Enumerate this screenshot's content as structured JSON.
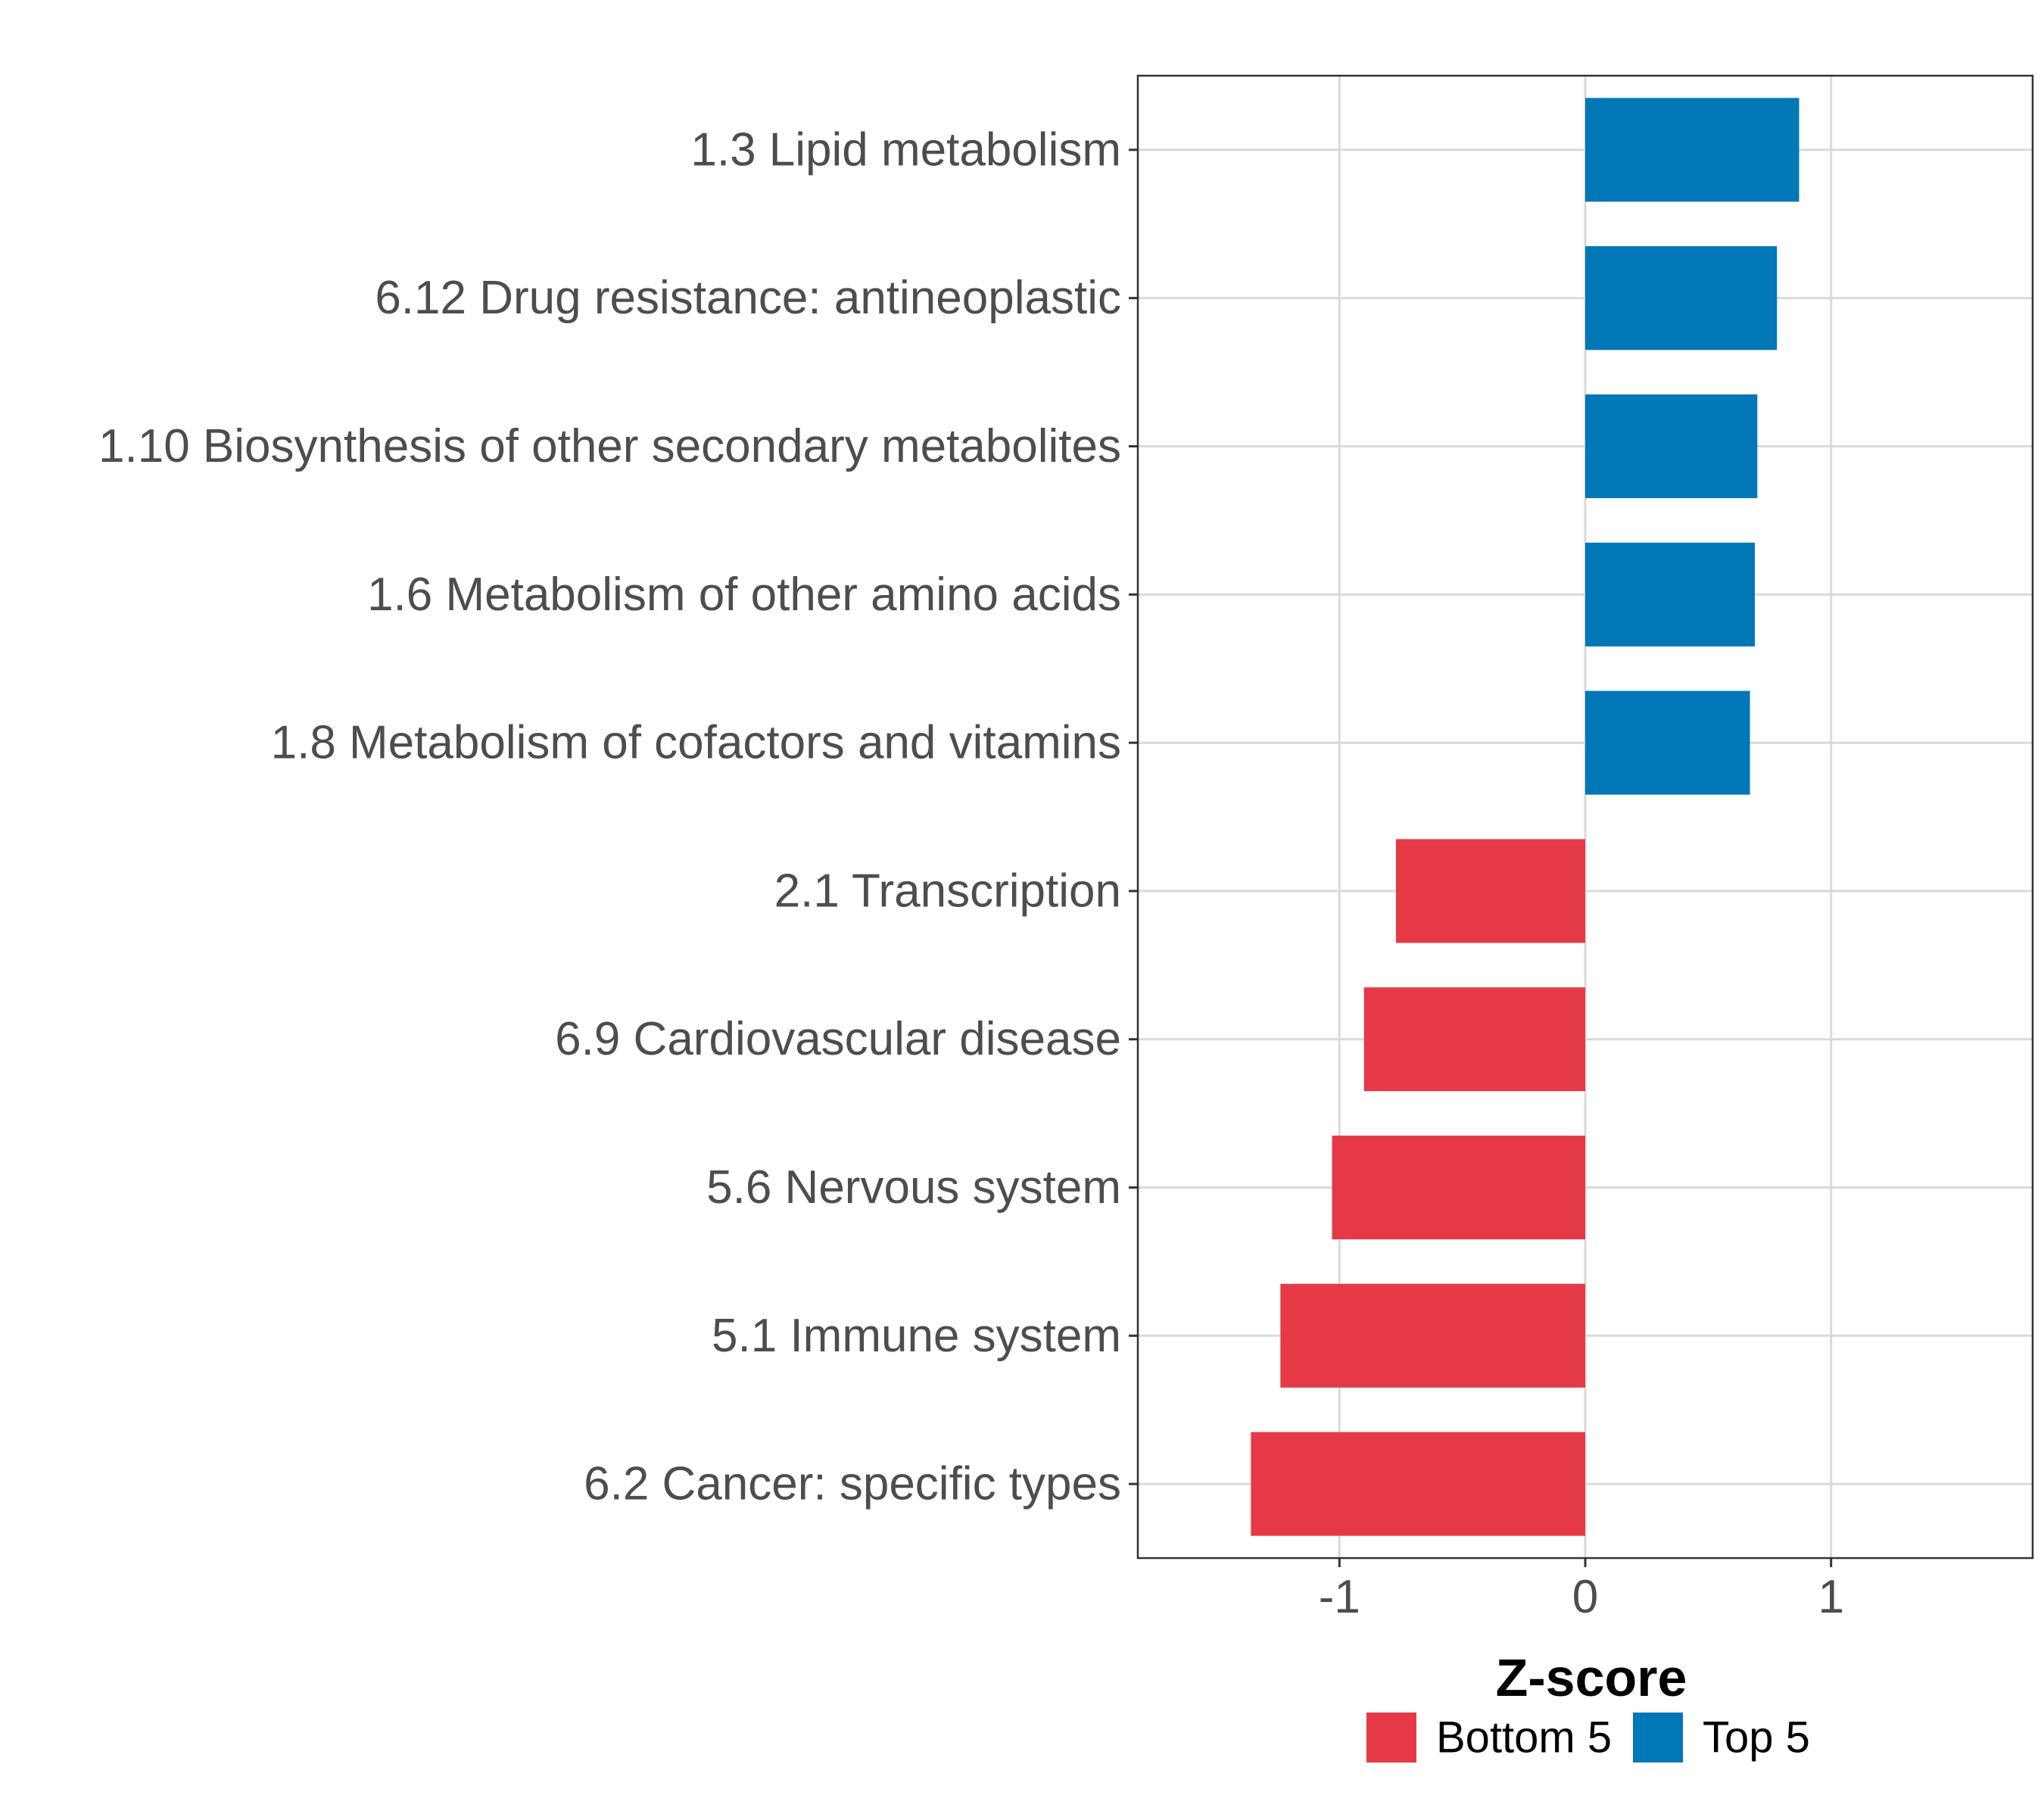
{
  "chart_data": {
    "type": "bar",
    "orientation": "horizontal",
    "categories": [
      "1.3 Lipid metabolism",
      "6.12 Drug resistance: antineoplastic",
      "1.10 Biosynthesis of other secondary metabolites",
      "1.6 Metabolism of other amino acids",
      "1.8 Metabolism of cofactors and vitamins",
      "2.1 Transcription",
      "6.9 Cardiovascular disease",
      "5.6 Nervous system",
      "5.1 Immune system",
      "6.2 Cancer: specific types"
    ],
    "values": [
      0.87,
      0.78,
      0.7,
      0.69,
      0.67,
      -0.77,
      -0.9,
      -1.03,
      -1.24,
      -1.36
    ],
    "groups": [
      "Top 5",
      "Top 5",
      "Top 5",
      "Top 5",
      "Top 5",
      "Bottom 5",
      "Bottom 5",
      "Bottom 5",
      "Bottom 5",
      "Bottom 5"
    ],
    "xlabel": "Z-score",
    "ylabel": "",
    "xlim": [
      -1.82,
      1.82
    ],
    "xticks": [
      -1,
      0,
      1
    ],
    "xtick_labels": [
      "-1",
      "0",
      "1"
    ],
    "grid": true,
    "legend": {
      "position": "bottom",
      "entries": [
        {
          "label": "Bottom 5",
          "color": "#e63946"
        },
        {
          "label": "Top 5",
          "color": "#0077b6"
        }
      ]
    },
    "colors": {
      "Top 5": "#0077b6",
      "Bottom 5": "#e63946"
    }
  }
}
